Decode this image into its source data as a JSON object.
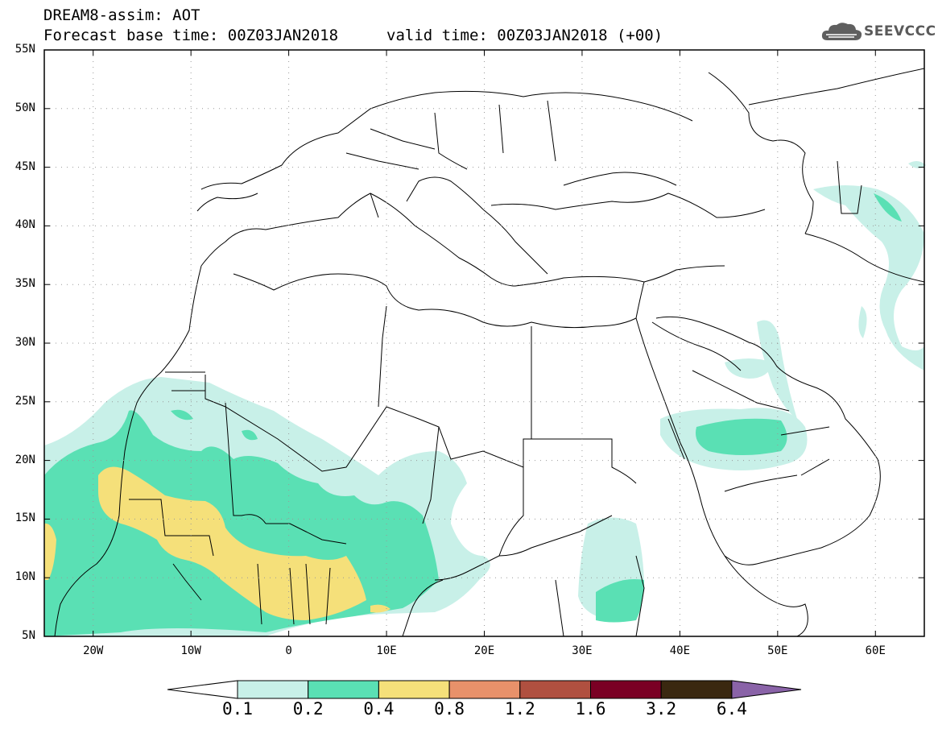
{
  "header": {
    "title_line1": "DREAM8-assim: AOT",
    "title_line2": "Forecast base time: 00Z03JAN2018",
    "valid_time": "valid time: 00Z03JAN2018 (+00)",
    "logo_text": "SEEVCCC"
  },
  "map": {
    "lat_labels": [
      "55N",
      "50N",
      "45N",
      "40N",
      "35N",
      "30N",
      "25N",
      "20N",
      "15N",
      "10N",
      "5N"
    ],
    "lon_labels": [
      "20W",
      "10W",
      "0",
      "10E",
      "20E",
      "30E",
      "40E",
      "50E",
      "60E"
    ],
    "extent": {
      "lon_min": -25,
      "lon_max": 65,
      "lat_min": 5,
      "lat_max": 55
    },
    "gridlines": "dotted",
    "background_color": "#ffffff",
    "border_color": "#000000"
  },
  "colorbar": {
    "labels": [
      "0.1",
      "0.2",
      "0.4",
      "0.8",
      "1.2",
      "1.6",
      "3.2",
      "6.4"
    ],
    "colors": [
      "#c8f0e8",
      "#5ae0b4",
      "#f5e07a",
      "#e8916a",
      "#b05040",
      "#7a0024",
      "#3a2810"
    ],
    "under_color": "#ffffff",
    "over_color": "#8a63a8"
  }
}
